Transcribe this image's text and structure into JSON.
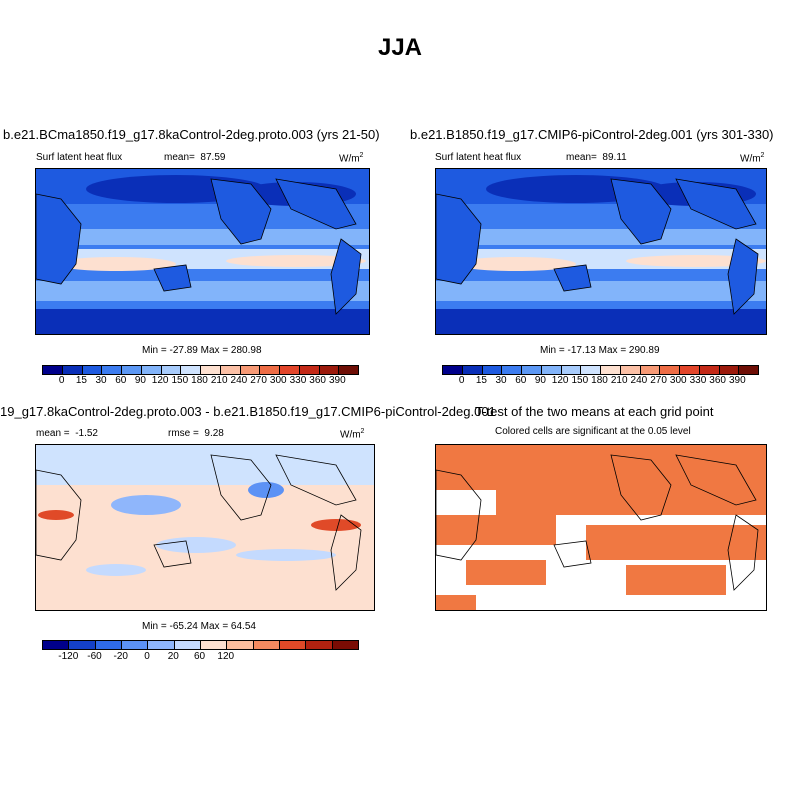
{
  "title": "JJA",
  "panels": {
    "p1": {
      "title": "b.e21.BCma1850.f19_g17.8kaControl-2deg.proto.003 (yrs 21-50)",
      "variable": "Surf latent heat flux",
      "mean_label": "mean=",
      "mean_value": "87.59",
      "units": "W/m",
      "units_exp": "2",
      "minmax": "Min = -27.89 Max = 280.98"
    },
    "p2": {
      "title": "b.e21.B1850.f19_g17.CMIP6-piControl-2deg.001 (yrs 301-330)",
      "variable": "Surf latent heat flux",
      "mean_label": "mean=",
      "mean_value": "89.11",
      "units": "W/m",
      "units_exp": "2",
      "minmax": "Min = -17.13 Max = 290.89"
    },
    "p3": {
      "title": "19_g17.8kaControl-2deg.proto.003 - b.e21.B1850.f19_g17.CMIP6-piControl-2deg.001",
      "mean_label": "mean =",
      "mean_value": "-1.52",
      "rmse_label": "rmse =",
      "rmse_value": "9.28",
      "units": "W/m",
      "units_exp": "2",
      "minmax": "Min = -65.24 Max = 64.54"
    },
    "p4": {
      "title": "T-test of the two means at each grid point",
      "subtitle": "Colored cells are significant at the 0.05 level"
    }
  },
  "colorbar_abs": {
    "colors": [
      "#00008b",
      "#0a2fb8",
      "#1e5ae0",
      "#3c7cf0",
      "#5c98f5",
      "#82b4fa",
      "#a8ccfc",
      "#cfe3fe",
      "#fde0d0",
      "#fbc0a6",
      "#f79a76",
      "#ee6c45",
      "#e2452a",
      "#c42a18",
      "#9c1a0c",
      "#6e0e05"
    ],
    "ticks": [
      "0",
      "15",
      "30",
      "60",
      "90",
      "120",
      "150",
      "180",
      "210",
      "240",
      "270",
      "300",
      "330",
      "360",
      "390"
    ]
  },
  "colorbar_diff": {
    "colors": [
      "#00008b",
      "#1440c8",
      "#2f6ae8",
      "#5c92f5",
      "#8fb6fb",
      "#c4dafe",
      "#fde0d0",
      "#fbbd9e",
      "#f48a60",
      "#e04a28",
      "#b22210",
      "#7a0c04"
    ],
    "ticks": [
      "-120",
      "-60",
      "-20",
      "0",
      "20",
      "60",
      "120"
    ]
  },
  "colors": {
    "significant": "#f07842"
  }
}
